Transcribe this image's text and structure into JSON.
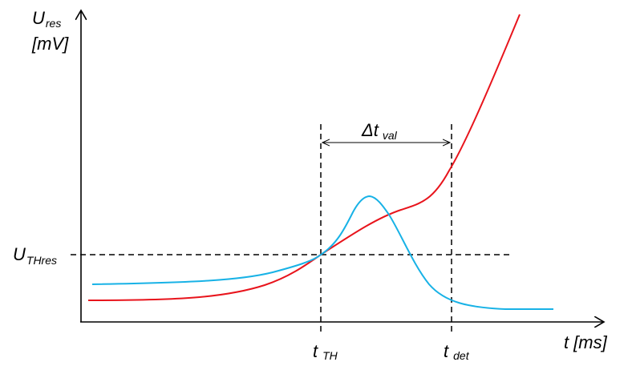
{
  "chart_data": {
    "type": "line",
    "title": "",
    "y_axis": {
      "symbol": "U",
      "symbol_sub": "res",
      "unit": "[mV]"
    },
    "x_axis": {
      "symbol": "t",
      "unit": "[ms]"
    },
    "threshold_label": {
      "symbol": "U",
      "symbol_sub": "THres"
    },
    "markers": {
      "t_th": {
        "symbol": "t",
        "sub": "TH"
      },
      "t_det": {
        "symbol": "t",
        "sub": "det"
      },
      "interval": {
        "symbol": "Δt",
        "sub": "val"
      }
    },
    "colors": {
      "red_series": "#e8141c",
      "blue_series": "#18b2e6",
      "axes": "#000000"
    },
    "series": [
      {
        "color": "red",
        "shape": "rising curve, crosses threshold at t TH and keeps rising steeply"
      },
      {
        "color": "blue",
        "shape": "low baseline, bump peaking between t TH and t det, decays back to baseline"
      }
    ]
  }
}
